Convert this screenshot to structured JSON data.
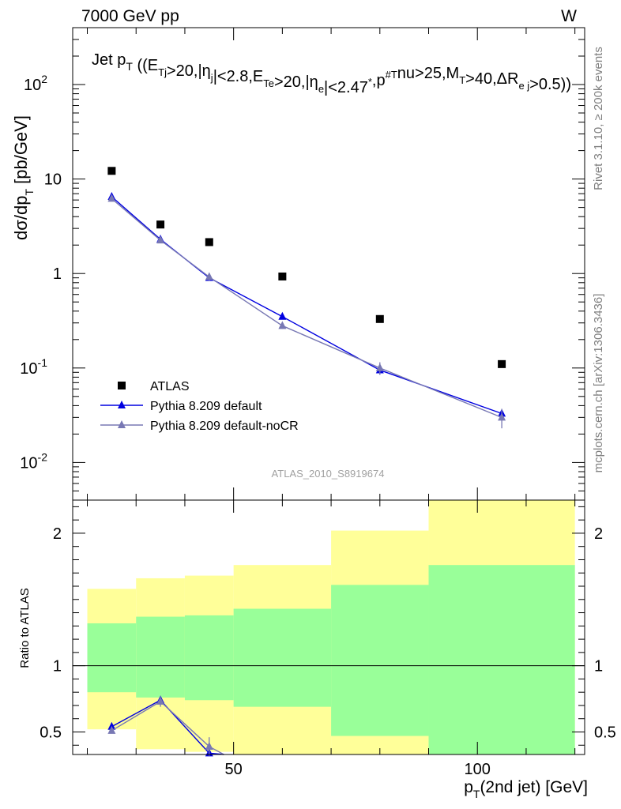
{
  "header": {
    "left": "7000 GeV pp",
    "right": "W"
  },
  "side_labels": {
    "rivet": "Rivet 3.1.10, ≥ 200k events",
    "mcplots": "mcplots.cern.ch [arXiv:1306.3436]"
  },
  "watermark": "ATLAS_2010_S8919674",
  "plot_title": {
    "prefix": "Jet p",
    "prefix_sub": "T",
    "parts": [
      {
        "t": " ((E"
      },
      {
        "sub": "Tj"
      },
      {
        "t": ">20,|η"
      },
      {
        "sub": "j"
      },
      {
        "t": "|<2.8,E"
      },
      {
        "sub": "Te"
      },
      {
        "t": ">20,|η"
      },
      {
        "sub": "e"
      },
      {
        "t": "|<2.47"
      },
      {
        "sup": "*"
      },
      {
        "t": ",p"
      },
      {
        "sup": "#"
      },
      {
        "sub": "T"
      },
      {
        "t": "nu>25,M"
      },
      {
        "sub": "T"
      },
      {
        "t": ">40,ΔR"
      },
      {
        "sub": "e j"
      },
      {
        "t": ">0.5))"
      }
    ]
  },
  "colors": {
    "atlas": "#000000",
    "default": "#0000e0",
    "nocr": "#7878b4",
    "band_inner": "#99ff99",
    "band_outer": "#ffff99"
  },
  "chart_data": {
    "type": "scatter",
    "main": {
      "ylabel": "dσ/dp_T [pb/GeV]",
      "yscale": "log",
      "ylim": [
        0.004,
        400
      ],
      "y_ticks": [
        {
          "value": 0.01,
          "label": "10",
          "exp": "-2"
        },
        {
          "value": 0.1,
          "label": "10",
          "exp": "-1"
        },
        {
          "value": 1,
          "label": "1"
        },
        {
          "value": 10,
          "label": "10"
        },
        {
          "value": 100,
          "label": "10",
          "exp": "2"
        }
      ],
      "series": [
        {
          "name": "ATLAS",
          "marker": "square",
          "color": "#000000",
          "x": [
            25,
            35,
            45,
            60,
            80,
            105
          ],
          "y": [
            12.2,
            3.3,
            2.15,
            0.93,
            0.33,
            0.11
          ]
        },
        {
          "name": "Pythia 8.209 default",
          "marker": "triangle",
          "color": "#0000e0",
          "x": [
            25,
            35,
            45,
            60,
            80,
            105
          ],
          "y": [
            6.5,
            2.3,
            0.9,
            0.35,
            0.095,
            0.033
          ],
          "err": [
            0,
            0,
            0.05,
            0,
            0.01,
            0.003
          ]
        },
        {
          "name": "Pythia 8.209 default-noCR",
          "marker": "triangle",
          "color": "#7878b4",
          "x": [
            25,
            35,
            45,
            60,
            80,
            105
          ],
          "y": [
            6.2,
            2.25,
            0.92,
            0.28,
            0.1,
            0.03
          ],
          "err": [
            0.2,
            0.1,
            0.08,
            0.02,
            0.015,
            0.007
          ]
        }
      ]
    },
    "ratio": {
      "ylabel": "Ratio to ATLAS",
      "ylim": [
        0.33,
        2.25
      ],
      "y_ticks": [
        0.5,
        1,
        2
      ],
      "bands": [
        {
          "x": [
            20,
            30
          ],
          "inner": [
            0.8,
            1.32
          ],
          "outer": [
            0.52,
            1.58
          ]
        },
        {
          "x": [
            30,
            40
          ],
          "inner": [
            0.76,
            1.37
          ],
          "outer": [
            0.37,
            1.66
          ]
        },
        {
          "x": [
            40,
            50
          ],
          "inner": [
            0.74,
            1.38
          ],
          "outer": [
            0.35,
            1.68
          ]
        },
        {
          "x": [
            50,
            70
          ],
          "inner": [
            0.69,
            1.43
          ],
          "outer": [
            0.33,
            1.76
          ]
        },
        {
          "x": [
            70,
            90
          ],
          "inner": [
            0.47,
            1.61
          ],
          "outer": [
            0.33,
            2.02
          ]
        },
        {
          "x": [
            90,
            120
          ],
          "inner": [
            0.33,
            1.76
          ],
          "outer": [
            0.33,
            2.25
          ]
        }
      ],
      "series": [
        {
          "name": "Pythia 8.209 default",
          "color": "#0000e0",
          "x": [
            25,
            35,
            45,
            48
          ],
          "y": [
            0.54,
            0.74,
            0.34,
            0.33
          ],
          "err": [
            0,
            0.02,
            0,
            0
          ]
        },
        {
          "name": "Pythia 8.209 default-noCR",
          "color": "#7878b4",
          "x": [
            25,
            35,
            45,
            48
          ],
          "y": [
            0.51,
            0.73,
            0.39,
            0.33
          ],
          "err": [
            0.02,
            0.04,
            0.07,
            0
          ]
        }
      ]
    },
    "x": {
      "label": "p_T(2nd jet) [GeV]",
      "xlim": [
        17,
        122
      ],
      "ticks": [
        50,
        100
      ],
      "tick_labels": [
        "50",
        "100"
      ]
    },
    "legend": {
      "placement": "bottom-left",
      "entries": [
        "ATLAS",
        "Pythia 8.209 default",
        "Pythia 8.209 default-noCR"
      ]
    }
  }
}
